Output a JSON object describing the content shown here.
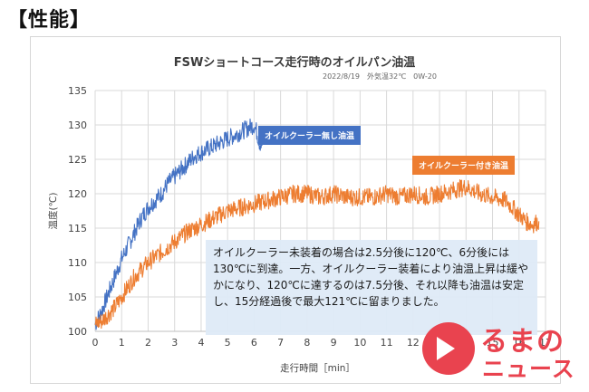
{
  "page": {
    "heading": "【性能】",
    "note_text": "オイルクーラー未装着の場合は2.5分後に120℃、6分後には130℃に到達。一方、オイルクーラー装着により油温上昇は緩やかになり、120℃に達するのは7.5分後、それ以降も油温は安定し、15分経過後で最大121℃に留まりました。",
    "watermark": {
      "line1": "るまの",
      "line2": "ニュース"
    }
  },
  "chart_data": {
    "type": "line",
    "title": "FSWショートコース走行時のオイルパン油温",
    "subtitle": "2022/8/19　外気温32℃　0W-20",
    "xlabel": "走行時間［min］",
    "ylabel": "温度(℃)",
    "xlim": [
      0,
      17
    ],
    "ylim": [
      100,
      135
    ],
    "xticks": [
      0,
      1,
      2,
      3,
      4,
      5,
      6,
      7,
      8,
      9,
      10,
      11,
      12,
      13,
      14,
      15,
      16,
      17
    ],
    "yticks": [
      100,
      105,
      110,
      115,
      120,
      125,
      130,
      135
    ],
    "grid": true,
    "series": [
      {
        "name": "オイルクーラー無し油温",
        "color": "#4472c4",
        "x": [
          0,
          0.25,
          0.5,
          0.75,
          1,
          1.25,
          1.5,
          1.75,
          2,
          2.25,
          2.5,
          2.75,
          3,
          3.25,
          3.5,
          3.75,
          4,
          4.25,
          4.5,
          4.75,
          5,
          5.25,
          5.5,
          5.75,
          6,
          6.1,
          6.2,
          6.3
        ],
        "y": [
          101,
          103,
          105.5,
          108,
          110.5,
          112.5,
          114.5,
          116.5,
          118,
          119,
          120,
          121.5,
          122.5,
          123.5,
          124.5,
          125.5,
          126,
          126.5,
          127,
          127.5,
          128,
          128.5,
          129,
          129.5,
          130,
          129,
          127.5,
          127
        ]
      },
      {
        "name": "オイルクーラー付き油温",
        "color": "#ed7d31",
        "x": [
          0,
          0.25,
          0.5,
          0.75,
          1,
          1.25,
          1.5,
          1.75,
          2,
          2.5,
          3,
          3.5,
          4,
          4.5,
          5,
          5.5,
          6,
          6.5,
          7,
          7.5,
          8,
          8.5,
          9,
          9.5,
          10,
          10.5,
          11,
          11.5,
          12,
          12.5,
          13,
          13.5,
          14,
          14.5,
          15,
          15.5,
          16,
          16.25,
          16.5,
          16.75
        ],
        "y": [
          101,
          101.5,
          102.5,
          103.5,
          105,
          106.5,
          108,
          109,
          110,
          111.5,
          113,
          114.5,
          115.5,
          116.5,
          117.5,
          118,
          118.5,
          119,
          119.5,
          120,
          120,
          119.5,
          120,
          119.5,
          119.5,
          119.5,
          120,
          119.5,
          120,
          119.5,
          120,
          120.5,
          121,
          120,
          119.5,
          119,
          117,
          116,
          115.5,
          116
        ]
      }
    ]
  }
}
